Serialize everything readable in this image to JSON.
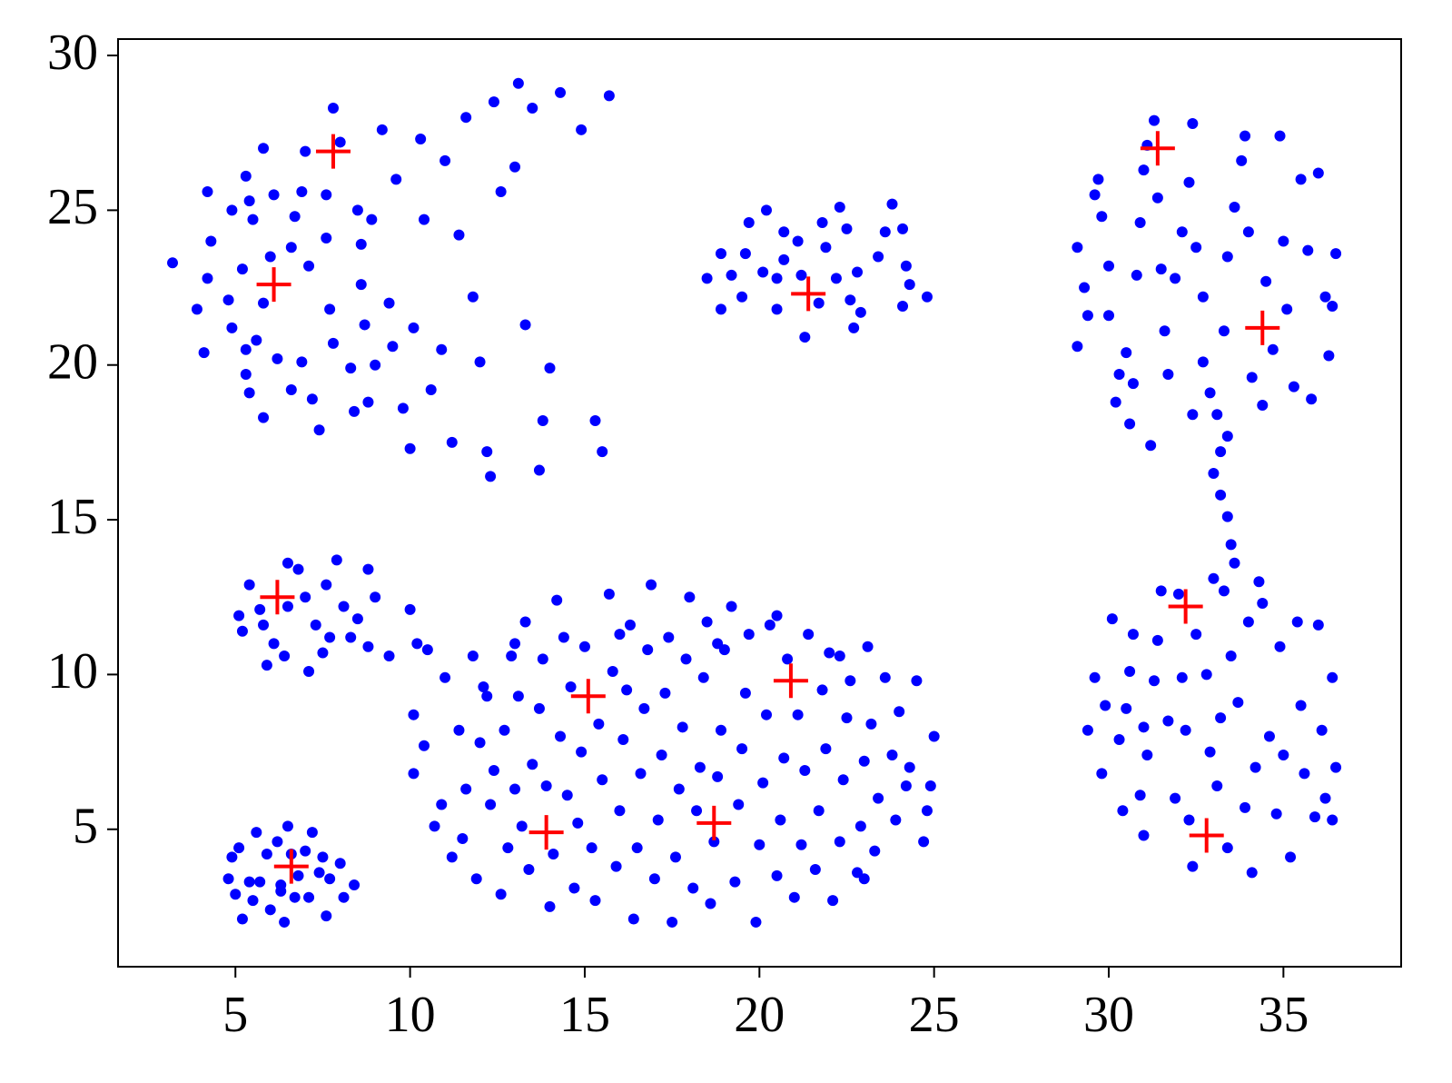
{
  "chart_data": {
    "type": "scatter",
    "xlim": [
      1.64,
      38.37
    ],
    "ylim": [
      0.56,
      30.53
    ],
    "xticks": [
      5,
      10,
      15,
      20,
      25,
      30,
      35
    ],
    "yticks": [
      5,
      10,
      15,
      20,
      25,
      30
    ],
    "series": [
      {
        "color": "#0000ff",
        "marker": "dot",
        "x": [
          3.2,
          3.9,
          4.1,
          4.2,
          4.3,
          4.2,
          4.8,
          4.9,
          4.9,
          5.2,
          5.3,
          5.3,
          5.3,
          5.4,
          5.4,
          5.5,
          5.6,
          5.8,
          5.8,
          5.8,
          6.0,
          6.1,
          6.2,
          6.6,
          6.6,
          6.7,
          6.9,
          6.9,
          7.0,
          7.1,
          7.2,
          7.4,
          7.6,
          7.6,
          7.7,
          7.8,
          7.8,
          8.0,
          8.3,
          8.4,
          8.5,
          8.6,
          8.6,
          8.7,
          8.8,
          8.9,
          9.0,
          9.2,
          9.4,
          9.5,
          9.6,
          9.8,
          10.0,
          10.1,
          10.3,
          10.4,
          10.6,
          10.9,
          11.0,
          11.2,
          11.4,
          11.6,
          11.8,
          12.0,
          12.2,
          12.3,
          12.4,
          12.6,
          13.0,
          13.1,
          13.3,
          13.5,
          13.8,
          14.0,
          14.3,
          14.9,
          15.3,
          15.5,
          15.7,
          13.7,
          18.5,
          18.9,
          18.9,
          19.2,
          19.5,
          19.6,
          19.7,
          20.1,
          20.2,
          20.5,
          20.5,
          20.7,
          20.7,
          21.1,
          21.2,
          21.3,
          21.7,
          21.8,
          21.9,
          22.2,
          22.3,
          22.5,
          22.6,
          22.8,
          22.9,
          23.4,
          23.6,
          23.8,
          24.1,
          24.2,
          24.3,
          24.8,
          24.1,
          22.7,
          29.1,
          29.3,
          29.4,
          29.6,
          29.7,
          29.8,
          30.0,
          30.0,
          29.1,
          30.3,
          30.2,
          30.5,
          30.6,
          30.8,
          30.9,
          31.0,
          31.1,
          31.3,
          31.4,
          31.5,
          31.6,
          31.7,
          31.9,
          32.1,
          32.3,
          32.4,
          32.5,
          32.7,
          32.7,
          32.9,
          33.1,
          33.3,
          33.4,
          33.6,
          33.8,
          33.9,
          34.0,
          34.1,
          34.4,
          34.5,
          34.7,
          34.9,
          35.0,
          35.1,
          35.3,
          35.5,
          35.7,
          35.8,
          36.0,
          36.2,
          36.3,
          36.5,
          36.4,
          32.4,
          33.4,
          33.2,
          33.0,
          33.2,
          33.4,
          33.5,
          33.6,
          33.3,
          33.0,
          31.2,
          30.7,
          29.4,
          29.6,
          29.8,
          29.9,
          30.1,
          30.3,
          30.4,
          30.5,
          30.6,
          30.7,
          30.9,
          31.0,
          31.1,
          31.3,
          31.4,
          31.5,
          31.7,
          31.9,
          32.1,
          32.2,
          32.3,
          32.4,
          32.5,
          32.8,
          32.9,
          33.1,
          33.2,
          33.4,
          33.5,
          33.7,
          33.9,
          34.0,
          34.1,
          34.2,
          34.4,
          34.6,
          34.8,
          34.9,
          35.0,
          35.2,
          35.4,
          35.5,
          35.6,
          35.9,
          36.1,
          36.2,
          36.4,
          36.5,
          36.4,
          34.3,
          36.0,
          32.0,
          31.0,
          4.8,
          4.9,
          5.1,
          5.2,
          5.4,
          5.5,
          5.6,
          5.7,
          5.9,
          6.0,
          6.2,
          6.3,
          6.4,
          6.5,
          6.6,
          6.7,
          6.8,
          7.0,
          7.1,
          7.2,
          7.4,
          7.5,
          7.6,
          7.7,
          8.0,
          8.1,
          8.4,
          6.3,
          5.0,
          5.1,
          5.2,
          5.4,
          5.7,
          5.8,
          5.9,
          6.1,
          6.4,
          6.5,
          6.8,
          7.0,
          7.1,
          7.3,
          7.5,
          7.6,
          7.9,
          8.1,
          8.3,
          8.5,
          8.8,
          9.0,
          8.8,
          9.4,
          10.0,
          10.2,
          7.7,
          6.5,
          10.1,
          10.1,
          10.4,
          10.5,
          10.7,
          10.9,
          11.0,
          11.2,
          11.4,
          11.5,
          11.6,
          11.8,
          11.9,
          12.0,
          12.2,
          12.3,
          12.4,
          12.6,
          12.7,
          12.8,
          12.9,
          13.0,
          13.1,
          13.2,
          13.3,
          13.4,
          13.5,
          13.7,
          13.8,
          13.9,
          14.0,
          14.1,
          14.3,
          14.4,
          14.5,
          14.6,
          14.7,
          14.8,
          14.9,
          15.0,
          15.2,
          15.3,
          15.4,
          15.5,
          15.7,
          15.8,
          15.9,
          16.0,
          16.1,
          16.2,
          16.3,
          16.4,
          16.5,
          16.6,
          16.7,
          16.8,
          16.9,
          17.0,
          17.1,
          17.2,
          17.3,
          17.4,
          17.5,
          17.6,
          17.7,
          17.8,
          17.9,
          18.0,
          18.1,
          18.2,
          18.3,
          18.4,
          18.5,
          18.6,
          18.7,
          18.8,
          18.9,
          19.0,
          19.2,
          19.3,
          19.4,
          19.5,
          19.6,
          19.7,
          19.9,
          20.0,
          20.1,
          20.2,
          20.3,
          20.5,
          20.6,
          20.7,
          20.8,
          21.0,
          21.1,
          21.2,
          21.3,
          21.4,
          21.6,
          21.7,
          21.8,
          21.9,
          22.0,
          22.1,
          22.3,
          22.4,
          22.5,
          22.6,
          22.8,
          22.9,
          23.0,
          23.1,
          23.2,
          23.3,
          23.4,
          23.6,
          23.8,
          23.9,
          24.0,
          24.2,
          24.3,
          24.5,
          24.7,
          24.8,
          24.9,
          25.0,
          23.0,
          12.1,
          14.2,
          18.8,
          20.5,
          22.3,
          16.0,
          13.0
        ],
        "y": [
          23.3,
          21.8,
          20.4,
          22.8,
          24.0,
          25.6,
          22.1,
          25.0,
          21.2,
          23.1,
          26.1,
          20.5,
          19.7,
          19.1,
          25.3,
          24.7,
          20.8,
          27.0,
          22.0,
          18.3,
          23.5,
          25.5,
          20.2,
          19.2,
          23.8,
          24.8,
          25.6,
          20.1,
          26.9,
          23.2,
          18.9,
          17.9,
          25.5,
          24.1,
          21.8,
          20.7,
          28.3,
          27.2,
          19.9,
          18.5,
          25.0,
          23.9,
          22.6,
          21.3,
          18.8,
          24.7,
          20.0,
          27.6,
          22.0,
          20.6,
          26.0,
          18.6,
          17.3,
          21.2,
          27.3,
          24.7,
          19.2,
          20.5,
          26.6,
          17.5,
          24.2,
          28.0,
          22.2,
          20.1,
          17.2,
          16.4,
          28.5,
          25.6,
          26.4,
          29.1,
          21.3,
          28.3,
          18.2,
          19.9,
          28.8,
          27.6,
          18.2,
          17.2,
          28.7,
          16.6,
          22.8,
          23.6,
          21.8,
          22.9,
          22.2,
          23.6,
          24.6,
          23.0,
          25.0,
          21.8,
          22.8,
          24.3,
          23.4,
          24.0,
          22.9,
          20.9,
          22.0,
          24.6,
          23.8,
          22.8,
          25.1,
          24.4,
          22.1,
          23.0,
          21.7,
          23.5,
          24.3,
          25.2,
          21.9,
          23.2,
          22.6,
          22.2,
          24.4,
          21.2,
          23.8,
          22.5,
          21.6,
          25.5,
          26.0,
          24.8,
          23.2,
          21.6,
          20.6,
          19.7,
          18.8,
          20.4,
          18.1,
          22.9,
          24.6,
          26.3,
          27.1,
          27.9,
          25.4,
          23.1,
          21.1,
          19.7,
          22.8,
          24.3,
          25.9,
          27.8,
          23.8,
          22.2,
          20.1,
          19.1,
          18.4,
          21.1,
          23.5,
          25.1,
          26.6,
          27.4,
          24.3,
          19.6,
          18.7,
          22.7,
          20.5,
          27.4,
          24.0,
          21.8,
          19.3,
          26.0,
          23.7,
          18.9,
          26.2,
          22.2,
          20.3,
          23.6,
          21.9,
          18.4,
          17.7,
          17.2,
          16.5,
          15.8,
          15.1,
          14.2,
          13.6,
          12.7,
          13.1,
          17.4,
          19.4,
          8.2,
          9.9,
          6.8,
          9.0,
          11.8,
          7.9,
          5.6,
          8.9,
          10.1,
          11.3,
          6.1,
          4.8,
          7.4,
          9.8,
          11.1,
          12.7,
          8.5,
          6.0,
          9.9,
          8.2,
          5.3,
          3.8,
          11.3,
          10.0,
          7.5,
          6.4,
          8.6,
          4.4,
          10.6,
          9.1,
          5.7,
          11.7,
          3.6,
          7.0,
          12.3,
          8.0,
          5.5,
          10.9,
          7.4,
          4.1,
          11.7,
          9.0,
          6.8,
          5.4,
          8.2,
          6.0,
          9.9,
          7.0,
          5.3,
          13.0,
          11.6,
          12.6,
          8.3,
          3.4,
          4.1,
          4.4,
          2.1,
          3.3,
          2.7,
          4.9,
          3.3,
          4.2,
          2.4,
          4.6,
          3.2,
          2.0,
          5.1,
          4.2,
          2.8,
          3.5,
          4.3,
          2.8,
          4.9,
          3.6,
          4.1,
          2.2,
          3.4,
          3.9,
          2.8,
          3.2,
          3.0,
          2.9,
          11.9,
          11.4,
          12.9,
          12.1,
          11.6,
          10.3,
          11.0,
          10.6,
          12.2,
          13.4,
          12.5,
          10.1,
          11.6,
          10.7,
          12.9,
          13.7,
          12.2,
          11.2,
          11.8,
          13.4,
          12.5,
          10.9,
          10.6,
          12.1,
          11.0,
          11.2,
          13.6,
          8.7,
          6.8,
          7.7,
          10.8,
          5.1,
          5.8,
          9.9,
          4.1,
          8.2,
          4.7,
          6.3,
          10.6,
          3.4,
          7.8,
          9.3,
          5.8,
          6.9,
          2.9,
          8.2,
          4.4,
          10.6,
          6.3,
          9.3,
          5.1,
          11.7,
          3.7,
          7.1,
          8.9,
          10.5,
          6.4,
          2.5,
          4.2,
          8.0,
          11.2,
          6.1,
          9.6,
          3.1,
          5.2,
          7.5,
          10.9,
          4.4,
          2.7,
          8.4,
          6.6,
          12.6,
          10.1,
          3.8,
          5.6,
          7.9,
          9.5,
          11.6,
          2.1,
          4.4,
          6.8,
          8.9,
          10.8,
          12.9,
          3.4,
          5.3,
          7.4,
          9.4,
          11.2,
          2.0,
          4.1,
          6.3,
          8.3,
          10.5,
          12.5,
          3.1,
          5.6,
          7.0,
          9.9,
          11.7,
          2.6,
          4.6,
          6.7,
          8.2,
          10.8,
          12.2,
          3.3,
          5.8,
          7.6,
          9.4,
          11.3,
          2.0,
          4.5,
          6.5,
          8.7,
          11.6,
          3.5,
          5.3,
          7.3,
          10.5,
          2.8,
          8.7,
          4.5,
          6.9,
          11.3,
          3.7,
          5.6,
          9.5,
          7.6,
          10.7,
          2.7,
          4.6,
          6.6,
          8.6,
          9.8,
          3.6,
          5.1,
          7.2,
          10.9,
          8.4,
          4.3,
          6.0,
          9.9,
          7.4,
          5.3,
          8.8,
          6.4,
          7.0,
          9.8,
          4.6,
          5.6,
          6.4,
          8.0,
          3.4,
          9.6,
          12.4,
          11.0,
          11.9,
          10.6,
          11.3,
          11.0
        ]
      },
      {
        "color": "#ff0000",
        "marker": "plus",
        "x": [
          7.8,
          6.1,
          21.4,
          31.4,
          34.4,
          6.2,
          32.2,
          15.1,
          20.9,
          13.9,
          18.7,
          6.6,
          32.8
        ],
        "y": [
          26.9,
          22.6,
          22.3,
          27.0,
          21.2,
          12.5,
          12.2,
          9.3,
          9.8,
          4.9,
          5.2,
          3.8,
          4.8
        ]
      }
    ]
  }
}
